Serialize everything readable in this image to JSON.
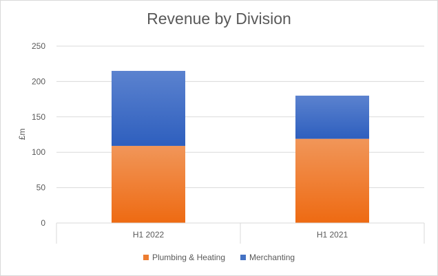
{
  "chart_data": {
    "type": "bar",
    "stacked": true,
    "title": "Revenue by Division",
    "xlabel": "",
    "ylabel": "£m",
    "ylim": [
      0,
      250
    ],
    "yticks": [
      0,
      50,
      100,
      150,
      200,
      250
    ],
    "categories": [
      "H1 2022",
      "H1 2021"
    ],
    "series": [
      {
        "name": "Plumbing & Heating",
        "values": [
          109,
          119
        ],
        "color": "#ed7d31"
      },
      {
        "name": "Merchanting",
        "values": [
          106,
          61
        ],
        "color": "#4472c4"
      }
    ],
    "grid": true,
    "legend": "bottom"
  }
}
